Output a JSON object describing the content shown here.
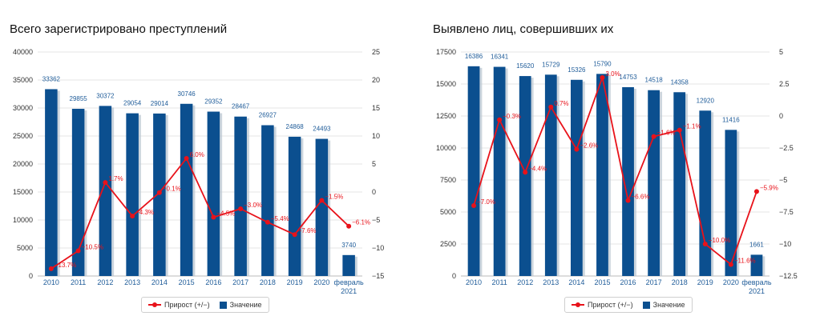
{
  "colors": {
    "bar": "#0B4F8F",
    "barShadow": "#B7C3CE",
    "line": "#E8121A",
    "barLabel": "#1F5C99",
    "grid": "#E6E6E6",
    "axisText": "#333333"
  },
  "legend": {
    "line_label": "Прирост (+/−)",
    "bar_label": "Значение"
  },
  "chart_data": [
    {
      "type": "bar",
      "title": "Всего зарегистрировано преступлений",
      "categories": [
        "2010",
        "2011",
        "2012",
        "2013",
        "2014",
        "2015",
        "2016",
        "2017",
        "2018",
        "2019",
        "2020",
        "февраль 2021"
      ],
      "series": [
        {
          "name": "Значение",
          "type": "bar",
          "axis": "left",
          "values": [
            33362,
            29855,
            30372,
            29054,
            29014,
            30746,
            29352,
            28467,
            26927,
            24868,
            24493,
            3740
          ],
          "labels": [
            "33362",
            "29855",
            "30372",
            "29054",
            "29014",
            "30746",
            "29352",
            "28467",
            "26927",
            "24868",
            "24493",
            "3740"
          ]
        },
        {
          "name": "Прирост (+/−)",
          "type": "line",
          "axis": "right",
          "values": [
            -13.7,
            -10.5,
            1.7,
            -4.3,
            -0.1,
            6.0,
            -4.5,
            -3.0,
            -5.4,
            -7.6,
            -1.5,
            -6.1
          ],
          "labels": [
            "−13.7%",
            "−10.5%",
            "1.7%",
            "−4.3%",
            "−0.1%",
            "6.0%",
            "−4.5%",
            "−3.0%",
            "−5.4%",
            "−7.6%",
            "−1.5%",
            "−6.1%"
          ]
        }
      ],
      "yLeft": {
        "min": 0,
        "max": 40000,
        "ticks": [
          "0",
          "5000",
          "10000",
          "15000",
          "20000",
          "25000",
          "30000",
          "35000",
          "40000"
        ]
      },
      "yRight": {
        "min": -15,
        "max": 25,
        "ticks": [
          "−15",
          "−10",
          "−5",
          "0",
          "5",
          "10",
          "15",
          "20",
          "25"
        ]
      }
    },
    {
      "type": "bar",
      "title": "Выявлено лиц, совершивших их",
      "categories": [
        "2010",
        "2011",
        "2012",
        "2013",
        "2014",
        "2015",
        "2016",
        "2017",
        "2018",
        "2019",
        "2020",
        "февраль 2021"
      ],
      "series": [
        {
          "name": "Значение",
          "type": "bar",
          "axis": "left",
          "values": [
            16386,
            16341,
            15620,
            15729,
            15326,
            15790,
            14753,
            14518,
            14358,
            12920,
            11416,
            1661
          ],
          "labels": [
            "16386",
            "16341",
            "15620",
            "15729",
            "15326",
            "15790",
            "14753",
            "14518",
            "14358",
            "12920",
            "11416",
            "1661"
          ]
        },
        {
          "name": "Прирост (+/−)",
          "type": "line",
          "axis": "right",
          "values": [
            -7.0,
            -0.3,
            -4.4,
            0.7,
            -2.6,
            3.0,
            -6.6,
            -1.6,
            -1.1,
            -10.0,
            -11.6,
            -5.9
          ],
          "labels": [
            "−7.0%",
            "−0.3%",
            "−4.4%",
            "0.7%",
            "−2.6%",
            "3.0%",
            "−6.6%",
            "−1.6%",
            "−1.1%",
            "−10.0%",
            "−11.6%",
            "−5.9%"
          ]
        }
      ],
      "yLeft": {
        "min": 0,
        "max": 17500,
        "ticks": [
          "0",
          "2500",
          "5000",
          "7500",
          "10000",
          "12500",
          "15000",
          "17500"
        ]
      },
      "yRight": {
        "min": -12.5,
        "max": 5,
        "ticks": [
          "−12.5",
          "−10",
          "−7.5",
          "−5",
          "−2.5",
          "0",
          "2.5",
          "5"
        ]
      }
    }
  ]
}
